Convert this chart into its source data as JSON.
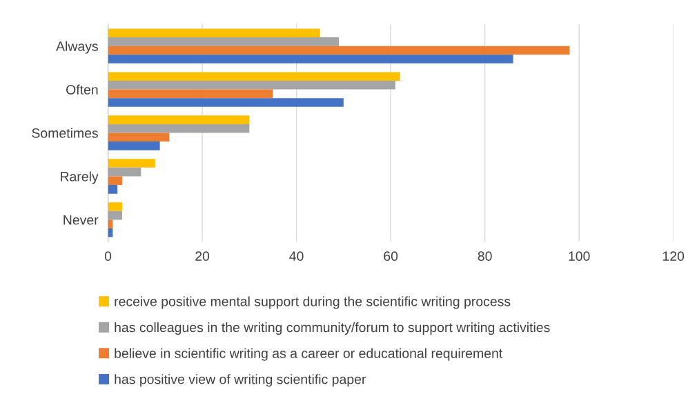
{
  "chart_data": {
    "type": "bar",
    "orientation": "horizontal",
    "categories": [
      "Always",
      "Often",
      "Sometimes",
      "Rarely",
      "Never"
    ],
    "series": [
      {
        "name": "receive positive mental support during the scientific writing process",
        "color": "#ffc000",
        "values": [
          45,
          62,
          30,
          10,
          3
        ]
      },
      {
        "name": "has colleagues in the writing community/forum to support writing activities",
        "color": "#a5a5a5",
        "values": [
          49,
          61,
          30,
          7,
          3
        ]
      },
      {
        "name": "believe in scientific writing as a career or educational requirement",
        "color": "#ed7d31",
        "values": [
          98,
          35,
          13,
          3,
          1
        ]
      },
      {
        "name": "has positive view of writing scientific paper",
        "color": "#4472c4",
        "values": [
          86,
          50,
          11,
          2,
          1
        ]
      }
    ],
    "xlim": [
      0,
      120
    ],
    "xticks": [
      0,
      20,
      40,
      60,
      80,
      100,
      120
    ],
    "grid": "x",
    "legend": "bottom"
  }
}
